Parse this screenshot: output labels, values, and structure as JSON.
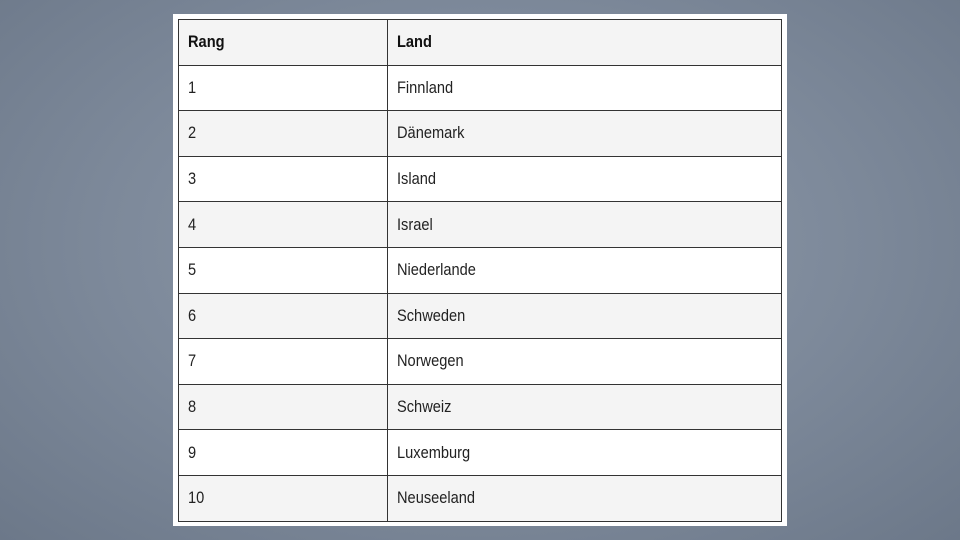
{
  "table": {
    "headers": [
      "Rang",
      "Land"
    ],
    "rows": [
      [
        "1",
        "Finnland"
      ],
      [
        "2",
        "Dänemark"
      ],
      [
        "3",
        "Island"
      ],
      [
        "4",
        "Israel"
      ],
      [
        "5",
        "Niederlande"
      ],
      [
        "6",
        "Schweden"
      ],
      [
        "7",
        "Norwegen"
      ],
      [
        "8",
        "Schweiz"
      ],
      [
        "9",
        "Luxemburg"
      ],
      [
        "10",
        "Neuseeland"
      ]
    ]
  }
}
